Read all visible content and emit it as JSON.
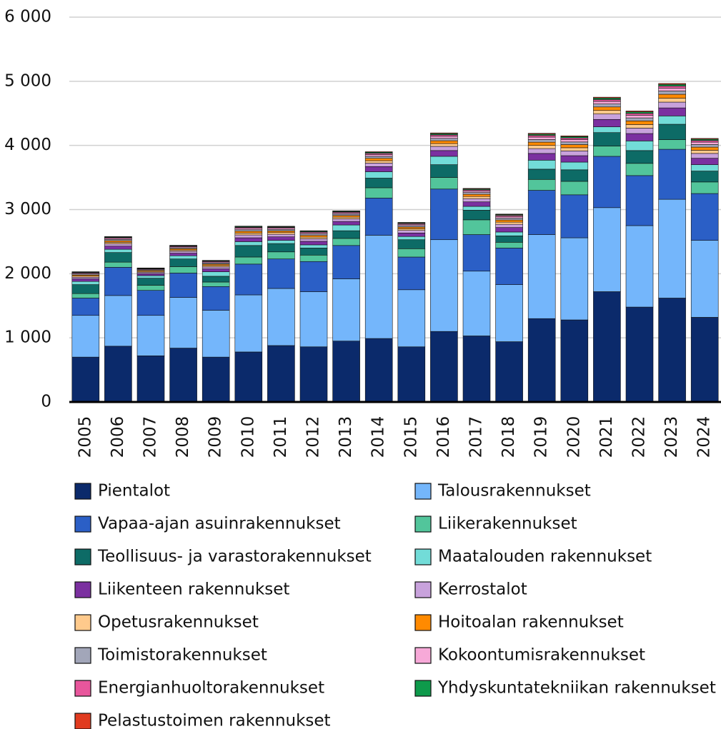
{
  "chart_data": {
    "type": "stacked_bar",
    "categories": [
      "2005",
      "2006",
      "2007",
      "2008",
      "2009",
      "2010",
      "2011",
      "2012",
      "2013",
      "2014",
      "2015",
      "2016",
      "2017",
      "2018",
      "2019",
      "2020",
      "2021",
      "2022",
      "2023",
      "2024"
    ],
    "ylim": [
      0,
      6000
    ],
    "yticks": [
      0,
      {
        "value": 1000,
        "label": "1 000"
      },
      {
        "value": 2000,
        "label": "2 000"
      },
      {
        "value": 3000,
        "label": "3 000"
      },
      {
        "value": 4000,
        "label": "4 000"
      },
      {
        "value": 5000,
        "label": "5 000"
      },
      {
        "value": 6000,
        "label": "6 000"
      }
    ],
    "grid": true,
    "legend": "bottom",
    "series": [
      {
        "name": "Pientalot",
        "color": "#0b2a6b",
        "values": [
          700,
          870,
          720,
          840,
          700,
          780,
          880,
          860,
          950,
          990,
          860,
          1100,
          1030,
          940,
          1300,
          1280,
          1720,
          1480,
          1620,
          1320
        ]
      },
      {
        "name": "Talousrakennukset",
        "color": "#74b6fb",
        "values": [
          650,
          790,
          630,
          790,
          730,
          890,
          890,
          860,
          970,
          1610,
          890,
          1430,
          1010,
          890,
          1310,
          1280,
          1310,
          1270,
          1540,
          1200
        ]
      },
      {
        "name": "Vapaa-ajan asuinrakennukset",
        "color": "#2b5fc6",
        "values": [
          270,
          440,
          390,
          380,
          370,
          480,
          460,
          470,
          520,
          580,
          510,
          790,
          570,
          570,
          690,
          670,
          800,
          780,
          780,
          730
        ]
      },
      {
        "name": "Liikerakennukset",
        "color": "#52c59b",
        "values": [
          70,
          80,
          80,
          100,
          70,
          110,
          110,
          100,
          110,
          160,
          130,
          180,
          230,
          90,
          170,
          210,
          160,
          190,
          150,
          180
        ]
      },
      {
        "name": "Teollisuus- ja varastorakennukset",
        "color": "#0d6b66",
        "values": [
          140,
          150,
          110,
          120,
          90,
          180,
          130,
          110,
          120,
          150,
          140,
          200,
          150,
          100,
          160,
          180,
          210,
          200,
          240,
          170
        ]
      },
      {
        "name": "Maatalouden rakennukset",
        "color": "#72dcd8",
        "values": [
          50,
          50,
          40,
          50,
          70,
          60,
          50,
          50,
          90,
          100,
          50,
          130,
          60,
          60,
          140,
          120,
          90,
          150,
          130,
          100
        ]
      },
      {
        "name": "Liikenteen rakennukset",
        "color": "#7b30a0",
        "values": [
          40,
          50,
          30,
          40,
          45,
          60,
          55,
          55,
          55,
          80,
          55,
          90,
          70,
          70,
          105,
          100,
          115,
          115,
          125,
          100
        ]
      },
      {
        "name": "Kerrostalot",
        "color": "#c8a2dc",
        "values": [
          25,
          35,
          20,
          30,
          30,
          45,
          40,
          40,
          40,
          55,
          40,
          65,
          50,
          50,
          75,
          75,
          85,
          85,
          90,
          75
        ]
      },
      {
        "name": "Opetusrakennukset",
        "color": "#ffca8c",
        "values": [
          18,
          24,
          15,
          20,
          22,
          29,
          26,
          26,
          26,
          37,
          26,
          44,
          34,
          34,
          50,
          49,
          55,
          56,
          61,
          49
        ]
      },
      {
        "name": "Hoitoalan rakennukset",
        "color": "#ff8a00",
        "values": [
          18,
          24,
          15,
          20,
          22,
          29,
          26,
          26,
          26,
          37,
          26,
          44,
          34,
          34,
          50,
          49,
          55,
          56,
          61,
          49
        ]
      },
      {
        "name": "Toimistorakennukset",
        "color": "#a2a6b9",
        "values": [
          15,
          20,
          12,
          16,
          18,
          24,
          22,
          22,
          22,
          31,
          22,
          37,
          28,
          28,
          42,
          41,
          46,
          47,
          51,
          41
        ]
      },
      {
        "name": "Kokoontumisrakennukset",
        "color": "#f7a9d8",
        "values": [
          14,
          18,
          11,
          14,
          16,
          22,
          20,
          20,
          20,
          28,
          20,
          33,
          25,
          25,
          38,
          37,
          41,
          42,
          46,
          37
        ]
      },
      {
        "name": "Energianhuoltorakennukset",
        "color": "#e8569c",
        "values": [
          9,
          12,
          7,
          10,
          11,
          14,
          13,
          13,
          13,
          19,
          13,
          22,
          17,
          17,
          25,
          25,
          28,
          28,
          31,
          25
        ]
      },
      {
        "name": "Yhdyskuntatekniikan rakennukset",
        "color": "#0e9a4b",
        "values": [
          8,
          10,
          6,
          8,
          9,
          12,
          11,
          11,
          11,
          16,
          11,
          19,
          14,
          14,
          21,
          21,
          23,
          24,
          26,
          21
        ]
      },
      {
        "name": "Pelastustoimen rakennukset",
        "color": "#e13b1f",
        "values": [
          4,
          6,
          4,
          5,
          5,
          7,
          7,
          7,
          7,
          9,
          7,
          11,
          8,
          8,
          13,
          12,
          14,
          14,
          15,
          12
        ]
      }
    ]
  }
}
